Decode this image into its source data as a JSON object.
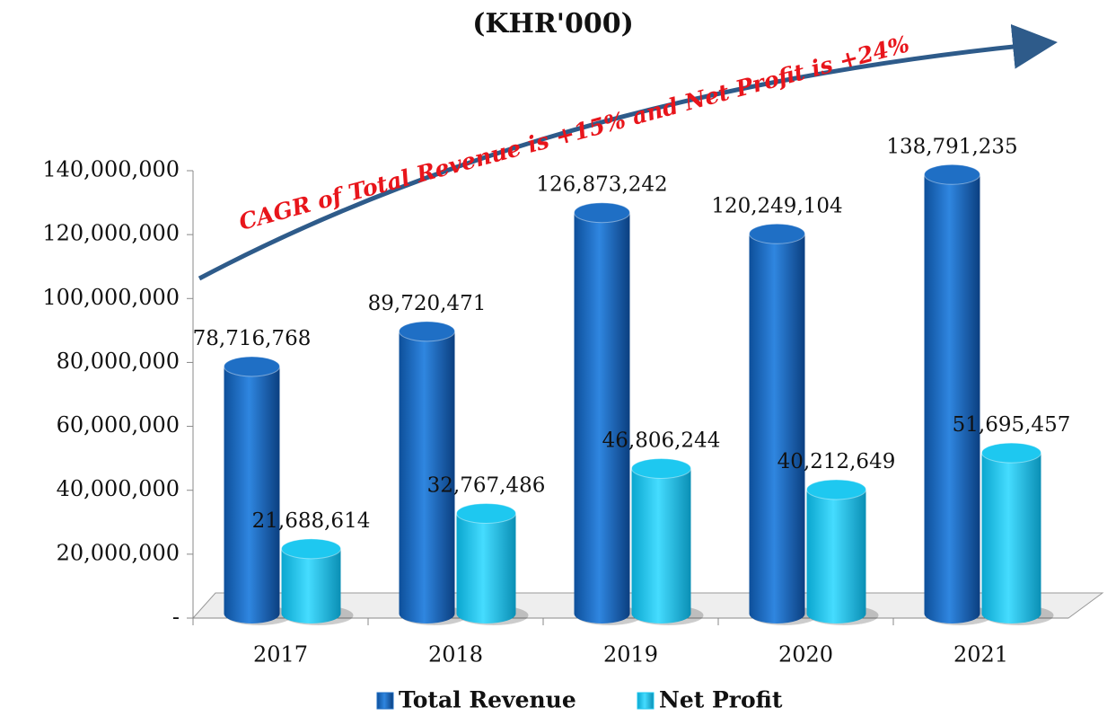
{
  "chart_data": {
    "type": "bar",
    "title": "(KHR'000)",
    "annotation": "CAGR of Total Revenue is +15% and Net Profit is +24%",
    "categories": [
      "2017",
      "2018",
      "2019",
      "2020",
      "2021"
    ],
    "series": [
      {
        "name": "Total Revenue",
        "color": "#1f6fc5",
        "values": [
          78716768,
          89720471,
          126873242,
          120249104,
          138791235
        ],
        "value_labels": [
          "78,716,768",
          "89,720,471",
          "126,873,242",
          "120,249,104",
          "138,791,235"
        ]
      },
      {
        "name": "Net Profit",
        "color": "#1ec8f0",
        "values": [
          21688614,
          32767486,
          46806244,
          40212649,
          51695457
        ],
        "value_labels": [
          "21,688,614",
          "32,767,486",
          "46,806,244",
          "40,212,649",
          "51,695,457"
        ]
      }
    ],
    "ylim": [
      0,
      140000000
    ],
    "yticks": [
      {
        "value": 0,
        "label": "-"
      },
      {
        "value": 20000000,
        "label": "20,000,000"
      },
      {
        "value": 40000000,
        "label": "40,000,000"
      },
      {
        "value": 60000000,
        "label": "60,000,000"
      },
      {
        "value": 80000000,
        "label": "80,000,000"
      },
      {
        "value": 100000000,
        "label": "100,000,000"
      },
      {
        "value": 120000000,
        "label": "120,000,000"
      },
      {
        "value": 140000000,
        "label": "140,000,000"
      }
    ],
    "legend": "bottom"
  }
}
